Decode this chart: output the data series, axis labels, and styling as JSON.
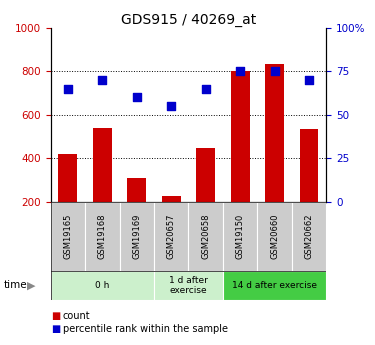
{
  "title": "GDS915 / 40269_at",
  "samples": [
    "GSM19165",
    "GSM19168",
    "GSM19169",
    "GSM20657",
    "GSM20658",
    "GSM19150",
    "GSM20660",
    "GSM20662"
  ],
  "counts": [
    420,
    540,
    310,
    225,
    445,
    800,
    835,
    535
  ],
  "percentiles": [
    65,
    70,
    60,
    55,
    65,
    75,
    75,
    70
  ],
  "groups": [
    {
      "label": "0 h",
      "span": [
        0,
        3
      ],
      "light": true
    },
    {
      "label": "1 d after\nexercise",
      "span": [
        3,
        5
      ],
      "light": true
    },
    {
      "label": "14 d after exercise",
      "span": [
        5,
        8
      ],
      "light": false
    }
  ],
  "bar_color": "#cc0000",
  "dot_color": "#0000cc",
  "left_tick_color": "#cc0000",
  "right_tick_color": "#0000cc",
  "ylim_left": [
    200,
    1000
  ],
  "ylim_right": [
    0,
    100
  ],
  "yticks_left": [
    200,
    400,
    600,
    800,
    1000
  ],
  "yticks_right": [
    0,
    25,
    50,
    75,
    100
  ],
  "background_color": "#ffffff",
  "sample_box_color": "#cccccc",
  "group_light_color": "#ccf0cc",
  "group_dark_color": "#44cc44",
  "grid_vals": [
    400,
    600,
    800
  ]
}
